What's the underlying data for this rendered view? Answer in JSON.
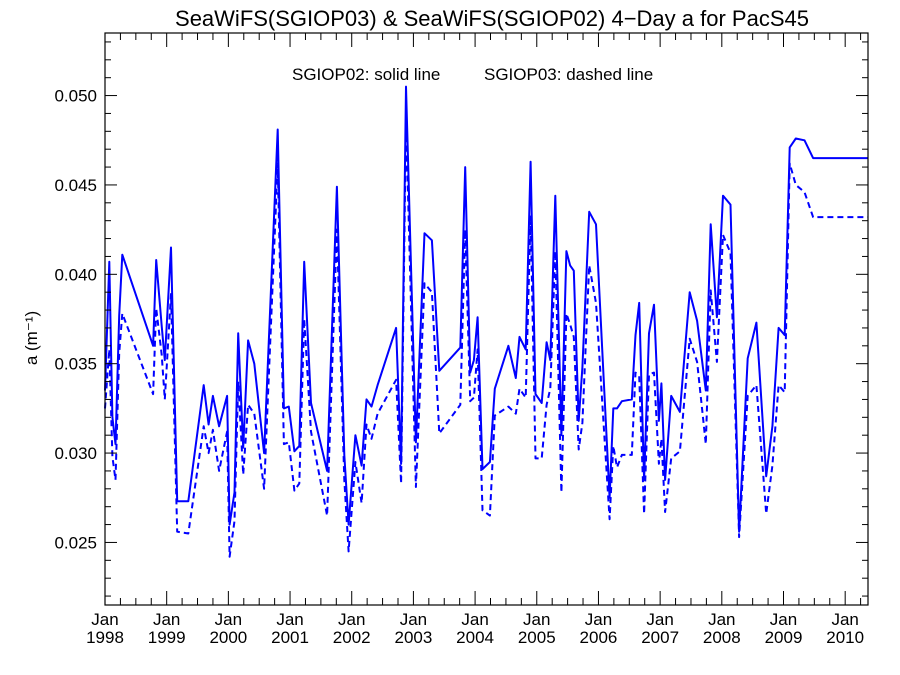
{
  "chart_data": {
    "type": "line",
    "title": "SeaWiFS(SGIOP03) & SeaWiFS(SGIOP02) 4−Day a for PacS45",
    "annotation_left": "SGIOP02: solid line",
    "annotation_right": "SGIOP03: dashed line",
    "ylabel": "a (m⁻¹)",
    "ylim": [
      0.0215,
      0.0535
    ],
    "xlim": [
      1998.0,
      2010.37
    ],
    "y_ticks": [
      "0.025",
      "0.030",
      "0.035",
      "0.040",
      "0.045",
      "0.050"
    ],
    "x_ticks_month": [
      "Jan",
      "Jan",
      "Jan",
      "Jan",
      "Jan",
      "Jan",
      "Jan",
      "Jan",
      "Jan",
      "Jan",
      "Jan",
      "Jan",
      "Jan"
    ],
    "x_ticks_year": [
      "1998",
      "1999",
      "2000",
      "2001",
      "2002",
      "2003",
      "2004",
      "2005",
      "2006",
      "2007",
      "2008",
      "2009",
      "2010"
    ],
    "line_color": "#0000ff",
    "series": [
      {
        "name": "SGIOP02",
        "style": "solid",
        "x": [
          1998.0,
          1998.07,
          1998.12,
          1998.17,
          1998.23,
          1998.28,
          1998.78,
          1998.83,
          1998.92,
          1998.97,
          1999.07,
          1999.17,
          1999.35,
          1999.6,
          1999.68,
          1999.75,
          1999.85,
          1999.98,
          2000.02,
          2000.1,
          2000.16,
          2000.24,
          2000.32,
          2000.42,
          2000.58,
          2000.8,
          2000.9,
          2000.98,
          2001.07,
          2001.15,
          2001.23,
          2001.34,
          2001.6,
          2001.76,
          2001.88,
          2001.95,
          2002.06,
          2002.16,
          2002.24,
          2002.32,
          2002.42,
          2002.72,
          2002.8,
          2002.88,
          2003.04,
          2003.18,
          2003.3,
          2003.42,
          2003.76,
          2003.84,
          2003.92,
          2003.98,
          2004.04,
          2004.12,
          2004.24,
          2004.32,
          2004.54,
          2004.66,
          2004.72,
          2004.82,
          2004.9,
          2004.98,
          2005.08,
          2005.16,
          2005.22,
          2005.3,
          2005.4,
          2005.48,
          2005.54,
          2005.6,
          2005.68,
          2005.74,
          2005.85,
          2005.96,
          2006.18,
          2006.24,
          2006.3,
          2006.38,
          2006.54,
          2006.6,
          2006.66,
          2006.74,
          2006.82,
          2006.9,
          2006.98,
          2007.02,
          2007.08,
          2007.18,
          2007.32,
          2007.48,
          2007.6,
          2007.74,
          2007.82,
          2007.92,
          2008.02,
          2008.14,
          2008.28,
          2008.42,
          2008.56,
          2008.72,
          2008.82,
          2008.92,
          2009.02,
          2009.1,
          2009.2,
          2009.34,
          2009.48,
          2009.62,
          2009.8,
          2009.9,
          2010.0,
          2010.1,
          2010.18,
          2010.26,
          2010.32,
          2010.37
        ],
        "y": [
          0.0335,
          0.0407,
          0.032,
          0.0305,
          0.0377,
          0.0411,
          0.036,
          0.0408,
          0.0371,
          0.0352,
          0.0415,
          0.0273,
          0.0273,
          0.0338,
          0.0316,
          0.0332,
          0.0315,
          0.0332,
          0.026,
          0.0278,
          0.0367,
          0.0303,
          0.0363,
          0.035,
          0.03,
          0.0481,
          0.0325,
          0.0326,
          0.0301,
          0.0304,
          0.0407,
          0.0328,
          0.029,
          0.0449,
          0.0299,
          0.026,
          0.031,
          0.0293,
          0.033,
          0.0326,
          0.0338,
          0.037,
          0.0294,
          0.0505,
          0.0306,
          0.0423,
          0.0419,
          0.0346,
          0.0359,
          0.046,
          0.0345,
          0.0352,
          0.0376,
          0.0291,
          0.0295,
          0.0336,
          0.036,
          0.0342,
          0.0365,
          0.0358,
          0.0463,
          0.0333,
          0.0328,
          0.0362,
          0.0352,
          0.0444,
          0.031,
          0.0413,
          0.0405,
          0.0402,
          0.0318,
          0.0348,
          0.0435,
          0.0428,
          0.0275,
          0.0325,
          0.0325,
          0.0329,
          0.033,
          0.0366,
          0.0384,
          0.0285,
          0.0367,
          0.0383,
          0.0318,
          0.0339,
          0.0285,
          0.0332,
          0.0323,
          0.039,
          0.0374,
          0.0335,
          0.0428,
          0.0376,
          0.0444,
          0.0439,
          0.0256,
          0.0353,
          0.0373,
          0.0287,
          0.0315,
          0.037,
          0.0366,
          0.0471,
          0.0476,
          0.0475,
          0.0465,
          0.0465,
          0.0465,
          0.0465,
          0.0465,
          0.0465,
          0.0465,
          0.0465,
          0.0465,
          0.0465
        ]
      },
      {
        "name": "SGIOP03",
        "style": "dashed",
        "x": [
          1998.0,
          1998.07,
          1998.12,
          1998.17,
          1998.23,
          1998.28,
          1998.78,
          1998.83,
          1998.92,
          1998.97,
          1999.07,
          1999.17,
          1999.35,
          1999.6,
          1999.68,
          1999.75,
          1999.85,
          1999.98,
          2000.02,
          2000.1,
          2000.16,
          2000.24,
          2000.32,
          2000.42,
          2000.58,
          2000.8,
          2000.9,
          2000.98,
          2001.07,
          2001.15,
          2001.23,
          2001.34,
          2001.6,
          2001.76,
          2001.88,
          2001.95,
          2002.06,
          2002.16,
          2002.24,
          2002.32,
          2002.42,
          2002.72,
          2002.8,
          2002.88,
          2003.04,
          2003.18,
          2003.3,
          2003.42,
          2003.76,
          2003.84,
          2003.92,
          2003.98,
          2004.04,
          2004.12,
          2004.24,
          2004.32,
          2004.54,
          2004.66,
          2004.72,
          2004.82,
          2004.9,
          2004.98,
          2005.08,
          2005.16,
          2005.22,
          2005.3,
          2005.4,
          2005.48,
          2005.54,
          2005.6,
          2005.68,
          2005.74,
          2005.85,
          2005.96,
          2006.18,
          2006.24,
          2006.3,
          2006.38,
          2006.54,
          2006.6,
          2006.66,
          2006.74,
          2006.82,
          2006.9,
          2006.98,
          2007.02,
          2007.08,
          2007.18,
          2007.32,
          2007.48,
          2007.6,
          2007.74,
          2007.82,
          2007.92,
          2008.02,
          2008.14,
          2008.28,
          2008.42,
          2008.56,
          2008.72,
          2008.82,
          2008.92,
          2009.02,
          2009.1,
          2009.2,
          2009.34,
          2009.48,
          2009.62,
          2009.8,
          2009.9,
          2010.0,
          2010.1,
          2010.18,
          2010.26,
          2010.32,
          2010.37
        ],
        "y": [
          0.0325,
          0.0358,
          0.0298,
          0.0285,
          0.0356,
          0.0378,
          0.0333,
          0.0381,
          0.0355,
          0.033,
          0.0389,
          0.0256,
          0.0255,
          0.0315,
          0.03,
          0.0313,
          0.029,
          0.0312,
          0.0242,
          0.0262,
          0.034,
          0.0288,
          0.0327,
          0.0322,
          0.028,
          0.0462,
          0.0305,
          0.0306,
          0.0279,
          0.0283,
          0.0375,
          0.0312,
          0.0265,
          0.0425,
          0.0285,
          0.0245,
          0.0295,
          0.0272,
          0.0316,
          0.0308,
          0.0322,
          0.0341,
          0.0283,
          0.0487,
          0.0281,
          0.0395,
          0.039,
          0.0311,
          0.0327,
          0.0425,
          0.0329,
          0.0331,
          0.0358,
          0.0268,
          0.0265,
          0.0321,
          0.0326,
          0.0322,
          0.0336,
          0.0331,
          0.0433,
          0.0297,
          0.0297,
          0.0327,
          0.0336,
          0.0413,
          0.0278,
          0.0378,
          0.0372,
          0.0365,
          0.0302,
          0.0317,
          0.0405,
          0.0384,
          0.0263,
          0.0304,
          0.0292,
          0.0299,
          0.0299,
          0.0345,
          0.0343,
          0.0266,
          0.0344,
          0.0345,
          0.0294,
          0.0308,
          0.0267,
          0.0297,
          0.0301,
          0.0364,
          0.0351,
          0.0305,
          0.0391,
          0.0351,
          0.0422,
          0.0412,
          0.0253,
          0.0332,
          0.0338,
          0.0266,
          0.0293,
          0.0338,
          0.0334,
          0.0462,
          0.045,
          0.0446,
          0.0432,
          0.0432,
          0.0432,
          0.0432,
          0.0432,
          0.0432,
          0.0432,
          0.0432,
          0.0432,
          0.0432
        ]
      }
    ]
  }
}
